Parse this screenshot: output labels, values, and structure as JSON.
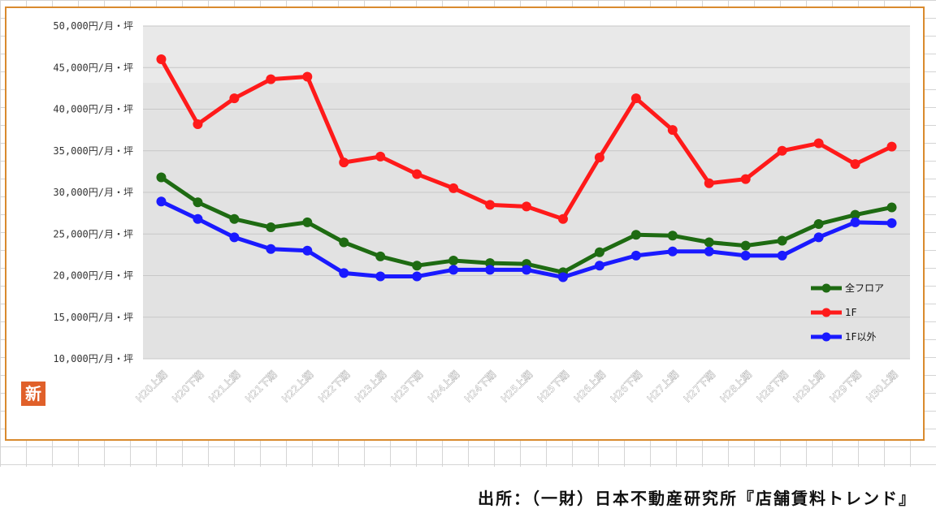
{
  "source_note": "出所：（一財）日本不動産研究所『店舗賃料トレンド』",
  "badge": "新",
  "chart_data": {
    "type": "line",
    "categories": [
      "H20上期",
      "H20下期",
      "H21上期",
      "H21下期",
      "H22上期",
      "H22下期",
      "H23上期",
      "H23下期",
      "H24上期",
      "H24下期",
      "H25上期",
      "H25下期",
      "H26上期",
      "H26下期",
      "H27上期",
      "H27下期",
      "H28上期",
      "H28下期",
      "H29上期",
      "H29下期",
      "H30上期"
    ],
    "yticks": [
      "10,000円/月・坪",
      "15,000円/月・坪",
      "20,000円/月・坪",
      "25,000円/月・坪",
      "30,000円/月・坪",
      "35,000円/月・坪",
      "40,000円/月・坪",
      "45,000円/月・坪",
      "50,000円/月・坪"
    ],
    "ylim": [
      10000,
      50000
    ],
    "grid": true,
    "legend_position": "right",
    "series": [
      {
        "name": "全フロア",
        "color": "#1e6b12",
        "values": [
          31800,
          28800,
          26800,
          25800,
          26400,
          24000,
          22300,
          21200,
          21800,
          21500,
          21400,
          20400,
          22800,
          24900,
          24800,
          24000,
          23600,
          24200,
          26200,
          27300,
          28200
        ]
      },
      {
        "name": "1F",
        "color": "#ff1a1a",
        "values": [
          46000,
          38200,
          41300,
          43600,
          43900,
          33600,
          34300,
          32200,
          30500,
          28500,
          28300,
          26800,
          34200,
          41300,
          37500,
          31100,
          31600,
          35000,
          35900,
          33400,
          35500
        ]
      },
      {
        "name": "1F以外",
        "color": "#1a1aff",
        "values": [
          28900,
          26800,
          24600,
          23200,
          23000,
          20300,
          19900,
          19900,
          20700,
          20700,
          20700,
          19800,
          21200,
          22400,
          22900,
          22900,
          22400,
          22400,
          24600,
          26400,
          26300
        ]
      }
    ]
  }
}
